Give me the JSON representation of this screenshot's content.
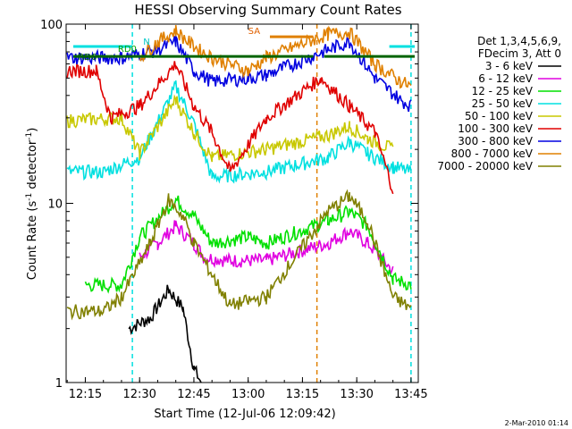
{
  "chart_data": {
    "type": "line",
    "title": "HESSI Observing Summary Count Rates",
    "xlabel": "Start Time (12-Jul-06 12:09:42)",
    "ylabel_main": "Count Rate (s",
    "ylabel_sup": "-1",
    "ylabel_tail": " detector",
    "ylabel_end": ")",
    "yscale": "log",
    "ylim": [
      1,
      100
    ],
    "xlim": [
      "12:09:42",
      "13:47:00"
    ],
    "x_tick_labels": [
      "12:15",
      "12:30",
      "12:45",
      "13:00",
      "13:15",
      "13:30",
      "13:45"
    ],
    "y_tick_labels": [
      "1",
      "10",
      "100"
    ],
    "legend_header": [
      "Det 1,3,4,5,6,9,",
      "FDecim 3, Att 0"
    ],
    "footer_date": "2-Mar-2010 01:14",
    "annotations": [
      {
        "text": "RD0",
        "color": "#00a000"
      },
      {
        "text": "RD6",
        "color": "#006400"
      },
      {
        "text": "N",
        "color": "#00c8c8"
      },
      {
        "text": "SA",
        "color": "#e06000"
      }
    ],
    "series": [
      {
        "name": "3 - 6 keV",
        "color": "#000000",
        "points": [
          [
            "12:27",
            2.0
          ],
          [
            "12:33",
            2.3
          ],
          [
            "12:38",
            3.3
          ],
          [
            "12:42",
            2.6
          ],
          [
            "12:45",
            1.2
          ],
          [
            "12:47",
            1.0
          ]
        ]
      },
      {
        "name": "6 - 12 keV",
        "color": "#e000e0",
        "points": [
          [
            "12:30",
            5.0
          ],
          [
            "12:35",
            6.0
          ],
          [
            "12:40",
            7.5
          ],
          [
            "12:45",
            6.0
          ],
          [
            "12:48",
            5.0
          ],
          [
            "12:55",
            4.8
          ],
          [
            "13:05",
            4.8
          ],
          [
            "13:22",
            6.0
          ],
          [
            "13:28",
            7.0
          ],
          [
            "13:33",
            6.0
          ],
          [
            "13:40",
            4.2
          ]
        ]
      },
      {
        "name": "12 - 25 keV",
        "color": "#00e000",
        "points": [
          [
            "12:15",
            3.5
          ],
          [
            "12:25",
            3.5
          ],
          [
            "12:30",
            6.5
          ],
          [
            "12:40",
            10.5
          ],
          [
            "12:45",
            8.5
          ],
          [
            "12:50",
            6.0
          ],
          [
            "13:00",
            6.5
          ],
          [
            "13:05",
            6.0
          ],
          [
            "13:22",
            8.0
          ],
          [
            "13:28",
            9.0
          ],
          [
            "13:33",
            7.5
          ],
          [
            "13:40",
            3.8
          ],
          [
            "13:45",
            3.5
          ]
        ]
      },
      {
        "name": "25 - 50 keV",
        "color": "#00e0e0",
        "points": [
          [
            "12:10",
            15.0
          ],
          [
            "12:20",
            15.0
          ],
          [
            "12:30",
            18.0
          ],
          [
            "12:36",
            31.0
          ],
          [
            "12:40",
            45.0
          ],
          [
            "12:45",
            28.0
          ],
          [
            "12:50",
            14.0
          ],
          [
            "13:05",
            15.0
          ],
          [
            "13:22",
            18.0
          ],
          [
            "13:28",
            22.0
          ],
          [
            "13:33",
            19.0
          ],
          [
            "13:40",
            16.0
          ],
          [
            "13:45",
            15.0
          ]
        ]
      },
      {
        "name": "50 - 100 keV",
        "color": "#c8c800",
        "points": [
          [
            "12:10",
            29.0
          ],
          [
            "12:25",
            30.0
          ],
          [
            "12:30",
            19.0
          ],
          [
            "12:40",
            38.0
          ],
          [
            "12:45",
            25.0
          ],
          [
            "12:50",
            18.0
          ],
          [
            "13:05",
            20.0
          ],
          [
            "13:22",
            24.0
          ],
          [
            "13:28",
            27.0
          ],
          [
            "13:33",
            23.0
          ],
          [
            "13:40",
            20.0
          ]
        ]
      },
      {
        "name": "100 - 300 keV",
        "color": "#e00000",
        "points": [
          [
            "12:10",
            55.0
          ],
          [
            "12:18",
            55.0
          ],
          [
            "12:22",
            30.0
          ],
          [
            "12:30",
            35.0
          ],
          [
            "12:40",
            60.0
          ],
          [
            "12:45",
            35.0
          ],
          [
            "12:50",
            25.0
          ],
          [
            "12:55",
            15.0
          ],
          [
            "13:05",
            30.0
          ],
          [
            "13:20",
            50.0
          ],
          [
            "13:28",
            35.0
          ],
          [
            "13:35",
            25.0
          ],
          [
            "13:40",
            12.0
          ]
        ]
      },
      {
        "name": "300 - 800 keV",
        "color": "#0000e0",
        "points": [
          [
            "12:10",
            65.0
          ],
          [
            "12:25",
            65.0
          ],
          [
            "12:35",
            72.0
          ],
          [
            "12:40",
            80.0
          ],
          [
            "12:45",
            55.0
          ],
          [
            "12:50",
            48.0
          ],
          [
            "13:00",
            50.0
          ],
          [
            "13:05",
            52.0
          ],
          [
            "13:22",
            72.0
          ],
          [
            "13:28",
            80.0
          ],
          [
            "13:35",
            50.0
          ],
          [
            "13:42",
            38.0
          ],
          [
            "13:45",
            35.0
          ]
        ]
      },
      {
        "name": "800 - 7000 keV",
        "color": "#e08000",
        "points": [
          [
            "12:30",
            65.0
          ],
          [
            "12:35",
            80.0
          ],
          [
            "12:40",
            92.0
          ],
          [
            "12:45",
            75.0
          ],
          [
            "12:50",
            65.0
          ],
          [
            "13:00",
            55.0
          ],
          [
            "13:05",
            65.0
          ],
          [
            "13:22",
            88.0
          ],
          [
            "13:28",
            90.0
          ],
          [
            "13:35",
            60.0
          ],
          [
            "13:42",
            48.0
          ],
          [
            "13:45",
            45.0
          ]
        ]
      },
      {
        "name": "7000 - 20000 keV",
        "color": "#808000",
        "points": [
          [
            "12:10",
            2.5
          ],
          [
            "12:20",
            2.5
          ],
          [
            "12:25",
            3.0
          ],
          [
            "12:33",
            6.0
          ],
          [
            "12:38",
            10.5
          ],
          [
            "12:42",
            8.5
          ],
          [
            "12:45",
            6.0
          ],
          [
            "12:50",
            4.0
          ],
          [
            "12:55",
            2.7
          ],
          [
            "13:05",
            3.0
          ],
          [
            "13:22",
            9.0
          ],
          [
            "13:28",
            11.0
          ],
          [
            "13:33",
            8.0
          ],
          [
            "13:40",
            3.0
          ],
          [
            "13:45",
            2.6
          ]
        ]
      }
    ]
  }
}
